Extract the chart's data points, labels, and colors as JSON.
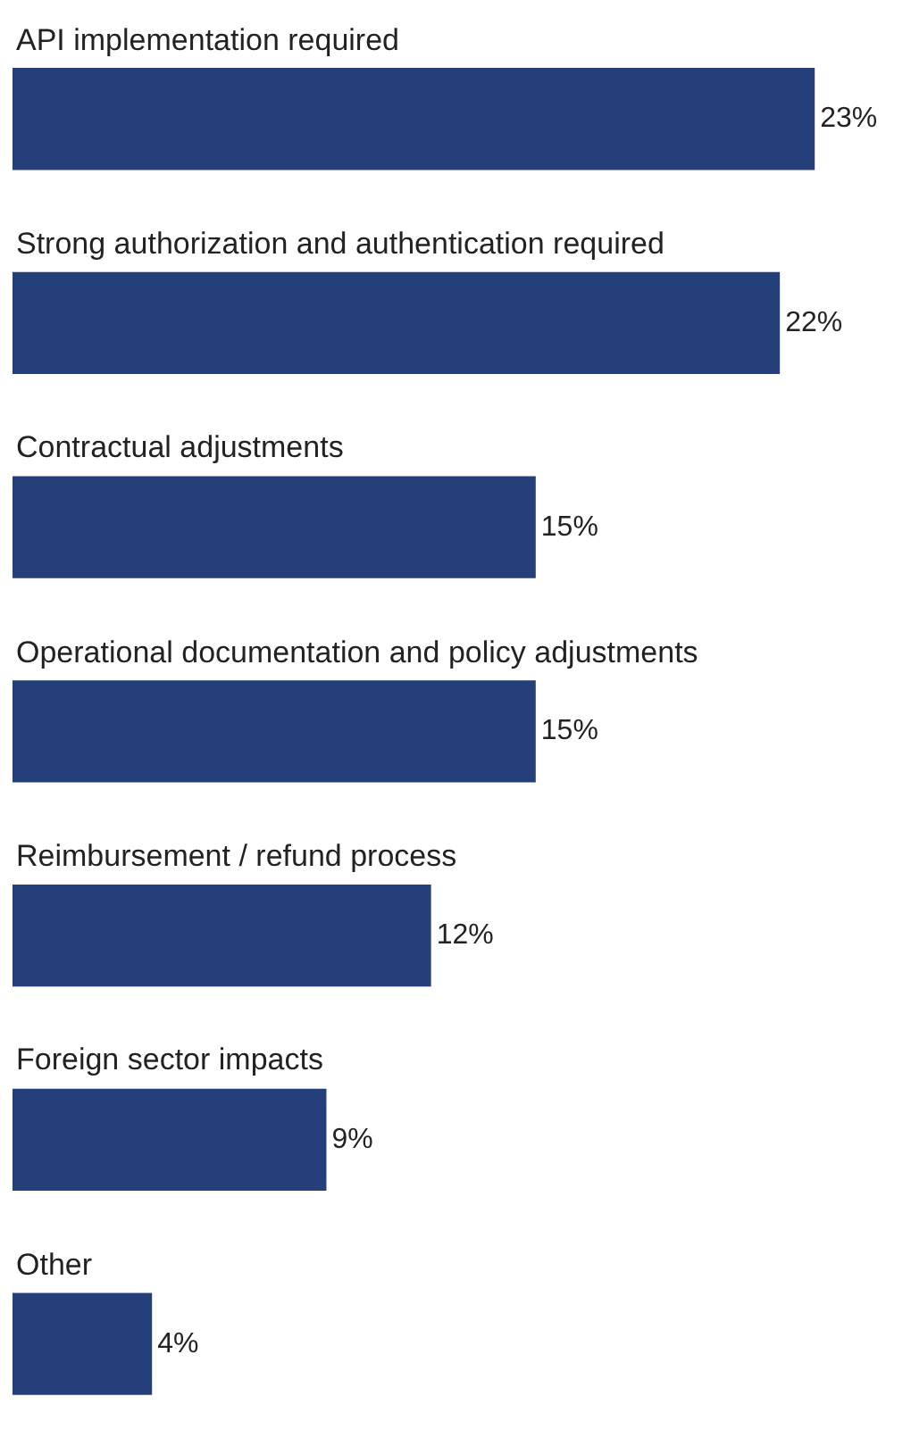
{
  "chart_data": {
    "type": "bar",
    "orientation": "horizontal",
    "categories": [
      "API implementation required",
      "Strong authorization and authentication required",
      "Contractual adjustments",
      "Operational documentation and policy adjustments",
      "Reimbursement / refund process",
      "Foreign sector impacts",
      "Other"
    ],
    "values": [
      23,
      22,
      15,
      15,
      12,
      9,
      4
    ],
    "value_labels": [
      "23%",
      "22%",
      "15%",
      "15%",
      "12%",
      "9%",
      "4%"
    ],
    "color": "#253f7a",
    "legend": false
  }
}
